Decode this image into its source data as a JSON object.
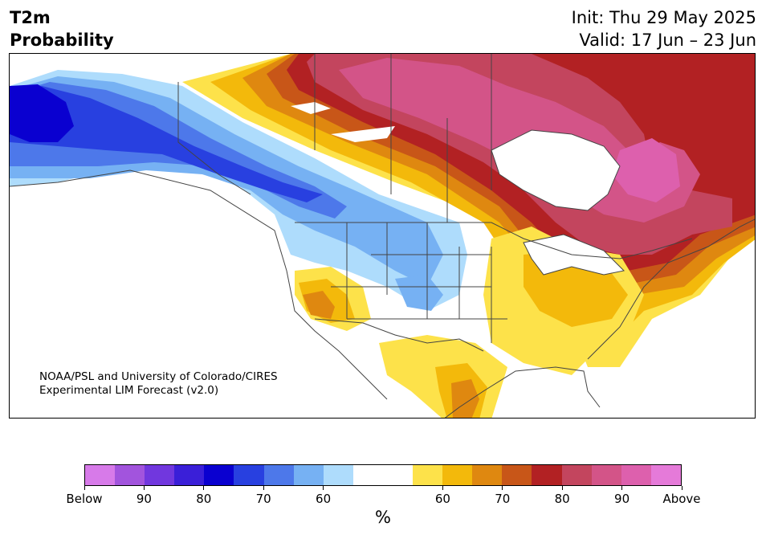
{
  "title": {
    "line1": "T2m",
    "line2": "Probability"
  },
  "header": {
    "init": "Init: Thu 29 May 2025",
    "valid": "Valid: 17 Jun – 23 Jun"
  },
  "credit": {
    "line1": "NOAA/PSL and University of Colorado/CIRES",
    "line2": "Experimental LIM Forecast (v2.0)"
  },
  "colorbar": {
    "unit": "%",
    "colors": [
      "#d77ae9",
      "#a254dd",
      "#7137de",
      "#3a1fd8",
      "#0a00d0",
      "#2840e0",
      "#4d78ea",
      "#76b1f3",
      "#aedcfc",
      "#ffffff",
      "#ffffff",
      "#fde24a",
      "#f3b90b",
      "#df8810",
      "#c85618",
      "#b22123",
      "#c3455e",
      "#d35488",
      "#dd60ad",
      "#e57ad9"
    ],
    "labels": [
      "Below",
      "90",
      "80",
      "70",
      "60",
      "60",
      "70",
      "80",
      "90",
      "Above"
    ]
  },
  "map": {
    "below_color": "#2a45de",
    "above_color": "#c83d5c"
  }
}
